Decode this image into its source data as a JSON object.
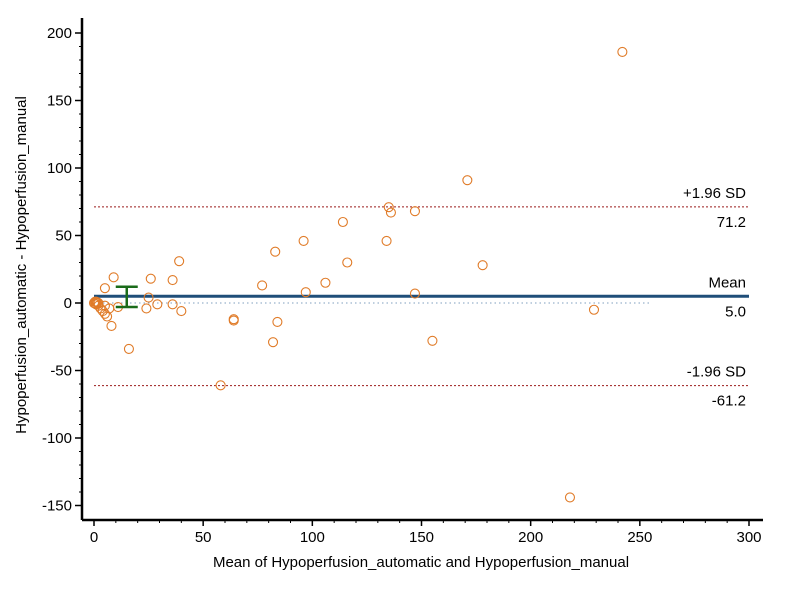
{
  "chart_data": {
    "type": "scatter",
    "title": "",
    "xlabel": "Mean of Hypoperfusion_automatic and Hypoperfusion_manual",
    "ylabel": "Hypoperfusion_automatic - Hypoperfusion_manual",
    "xlim": [
      -5,
      300
    ],
    "ylim": [
      -157,
      207
    ],
    "xticks": [
      0,
      50,
      100,
      150,
      200,
      250,
      300
    ],
    "yticks": [
      -150,
      -100,
      -50,
      0,
      50,
      100,
      150,
      200
    ],
    "grid": false,
    "legend": "none",
    "reference_lines": [
      {
        "label": "+1.96 SD",
        "value_label": "71.2",
        "y": 71.2,
        "style": "dashed",
        "color": "#9b1b1b"
      },
      {
        "label": "Mean",
        "value_label": "5.0",
        "y": 5.0,
        "style": "solid",
        "color": "#1f4e79"
      },
      {
        "label": "-1.96 SD",
        "value_label": "-61.2",
        "y": -61.2,
        "style": "dashed",
        "color": "#9b1b1b"
      }
    ],
    "zero_line": {
      "y": 0,
      "style": "dotted",
      "color": "#7f9fbf",
      "x_end": 255
    },
    "mean_ci_errorbar": {
      "x": 15,
      "y_low": -3,
      "y_high": 12,
      "color": "#1a6b1a"
    },
    "marker_color": "#e07b28",
    "points": [
      {
        "x": 0,
        "y": 0
      },
      {
        "x": 0.5,
        "y": 1
      },
      {
        "x": 1,
        "y": -1
      },
      {
        "x": 1.5,
        "y": 0.5
      },
      {
        "x": 2,
        "y": -2
      },
      {
        "x": 0.5,
        "y": -0.5
      },
      {
        "x": 1,
        "y": 1
      },
      {
        "x": 2,
        "y": 0
      },
      {
        "x": 3,
        "y": -4
      },
      {
        "x": 4,
        "y": -6
      },
      {
        "x": 5,
        "y": -2
      },
      {
        "x": 5,
        "y": -8
      },
      {
        "x": 6,
        "y": -10
      },
      {
        "x": 7,
        "y": -4
      },
      {
        "x": 5,
        "y": 11
      },
      {
        "x": 8,
        "y": -17
      },
      {
        "x": 9,
        "y": 19
      },
      {
        "x": 11,
        "y": -3
      },
      {
        "x": 16,
        "y": -34
      },
      {
        "x": 24,
        "y": -4
      },
      {
        "x": 25,
        "y": 4
      },
      {
        "x": 26,
        "y": 18
      },
      {
        "x": 29,
        "y": -1
      },
      {
        "x": 36,
        "y": 17
      },
      {
        "x": 36,
        "y": -1
      },
      {
        "x": 39,
        "y": 31
      },
      {
        "x": 40,
        "y": -6
      },
      {
        "x": 58,
        "y": -61
      },
      {
        "x": 64,
        "y": -12
      },
      {
        "x": 64,
        "y": -13
      },
      {
        "x": 77,
        "y": 13
      },
      {
        "x": 82,
        "y": -29
      },
      {
        "x": 83,
        "y": 38
      },
      {
        "x": 84,
        "y": -14
      },
      {
        "x": 96,
        "y": 46
      },
      {
        "x": 97,
        "y": 8
      },
      {
        "x": 106,
        "y": 15
      },
      {
        "x": 114,
        "y": 60
      },
      {
        "x": 116,
        "y": 30
      },
      {
        "x": 134,
        "y": 46
      },
      {
        "x": 135,
        "y": 71
      },
      {
        "x": 136,
        "y": 67
      },
      {
        "x": 147,
        "y": 68
      },
      {
        "x": 147,
        "y": 7
      },
      {
        "x": 155,
        "y": -28
      },
      {
        "x": 171,
        "y": 91
      },
      {
        "x": 178,
        "y": 28
      },
      {
        "x": 218,
        "y": -144
      },
      {
        "x": 229,
        "y": -5
      },
      {
        "x": 242,
        "y": 186
      }
    ]
  }
}
